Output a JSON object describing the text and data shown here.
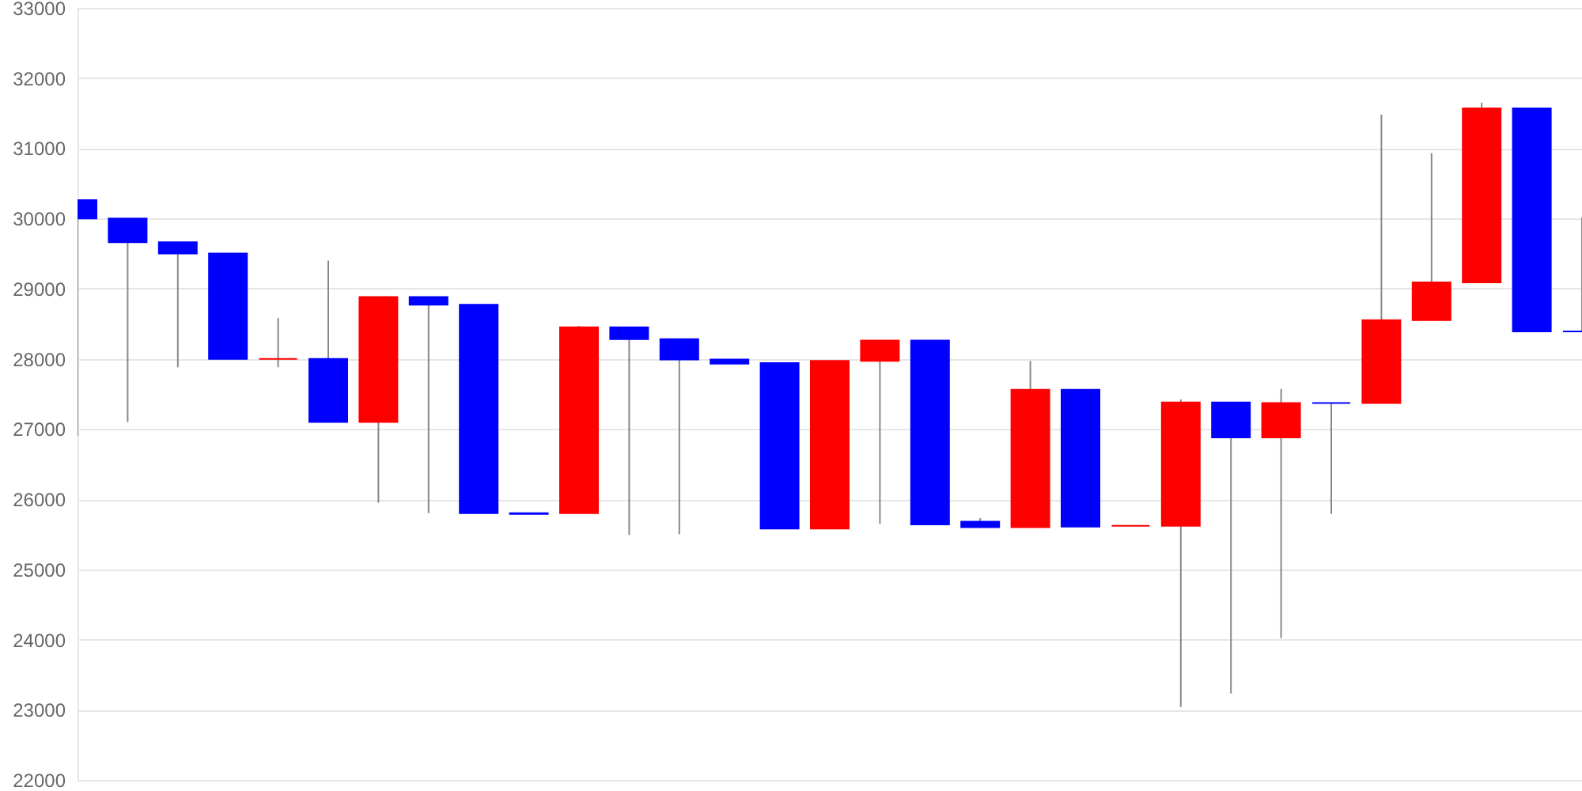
{
  "chart_data": {
    "type": "candlestick",
    "categories": [
      null,
      null,
      null,
      null,
      null,
      null,
      null,
      null,
      null,
      null,
      null,
      null,
      null,
      null,
      null,
      null,
      null,
      null,
      null,
      null,
      null,
      null,
      null,
      null,
      null,
      null,
      null,
      null,
      null,
      null,
      null
    ],
    "ohlc": [
      [
        30260,
        30260,
        26900,
        30000
      ],
      [
        30000,
        30000,
        27100,
        29660
      ],
      [
        29660,
        29660,
        27880,
        29500
      ],
      [
        29500,
        29500,
        28000,
        28000
      ],
      [
        28000,
        28580,
        27880,
        28000
      ],
      [
        28000,
        29400,
        27100,
        27100
      ],
      [
        27100,
        28880,
        25950,
        28880
      ],
      [
        28880,
        28880,
        25800,
        28770
      ],
      [
        28770,
        28770,
        25800,
        25800
      ],
      [
        25800,
        25800,
        25790,
        25790
      ],
      [
        25800,
        28470,
        25800,
        28450
      ],
      [
        28450,
        28450,
        25490,
        28280
      ],
      [
        28280,
        28280,
        25500,
        27990
      ],
      [
        27990,
        27990,
        27930,
        27930
      ],
      [
        27940,
        27940,
        25580,
        25580
      ],
      [
        25580,
        27970,
        25580,
        27970
      ],
      [
        27970,
        28260,
        25650,
        28260
      ],
      [
        28260,
        28260,
        25640,
        25640
      ],
      [
        25680,
        25730,
        25600,
        25600
      ],
      [
        25600,
        27970,
        25600,
        27560
      ],
      [
        27560,
        27560,
        25610,
        25610
      ],
      [
        25620,
        25620,
        25620,
        25620
      ],
      [
        25620,
        27420,
        23040,
        27380
      ],
      [
        27380,
        27380,
        23230,
        26880
      ],
      [
        26880,
        27570,
        24020,
        27370
      ],
      [
        27370,
        27370,
        25790,
        27370
      ],
      [
        27370,
        31480,
        27370,
        28550
      ],
      [
        28550,
        30930,
        28550,
        29090
      ],
      [
        29090,
        31650,
        29090,
        31570
      ],
      [
        31570,
        31570,
        28390,
        28390
      ],
      [
        28390,
        30010,
        28390,
        28390
      ]
    ],
    "colors": [
      "#0000ff",
      "#0000ff",
      "#0000ff",
      "#0000ff",
      "#ff0000",
      "#0000ff",
      "#ff0000",
      "#0000ff",
      "#0000ff",
      "#0000ff",
      "#ff0000",
      "#0000ff",
      "#0000ff",
      "#0000ff",
      "#0000ff",
      "#ff0000",
      "#ff0000",
      "#0000ff",
      "#0000ff",
      "#ff0000",
      "#0000ff",
      "#ff0000",
      "#ff0000",
      "#0000ff",
      "#ff0000",
      "#0000ff",
      "#ff0000",
      "#ff0000",
      "#ff0000",
      "#0000ff",
      "#0000ff"
    ],
    "ylim": [
      22000,
      33000
    ],
    "yticks": [
      22000,
      23000,
      24000,
      25000,
      26000,
      27000,
      28000,
      29000,
      30000,
      31000,
      32000,
      33000
    ],
    "grid": "y",
    "tick_labels": "y"
  }
}
